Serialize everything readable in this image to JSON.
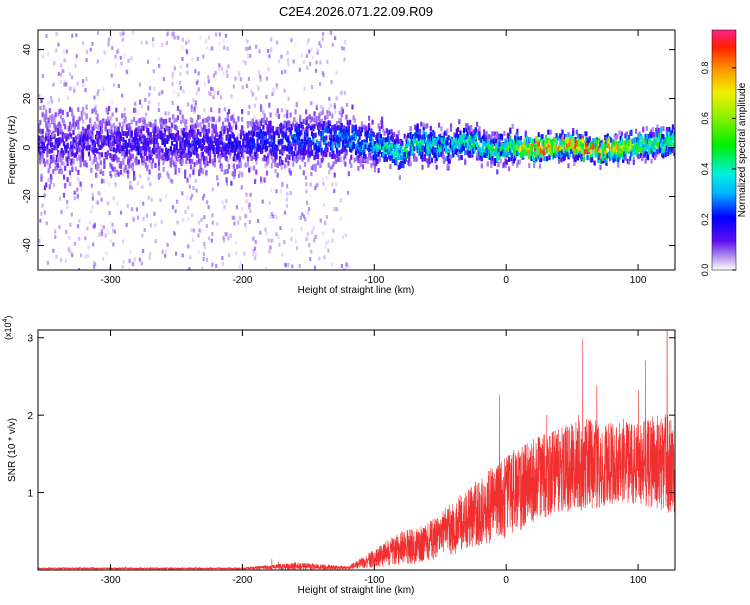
{
  "title": "C2E4.2026.071.22.09.R09",
  "colors": {
    "snr_line": "#f03030",
    "axis": "#000000",
    "background": "#ffffff"
  },
  "chart_data": [
    {
      "type": "heatmap",
      "name": "spectrogram",
      "xlabel": "Height of straight line (km)",
      "ylabel": "Frequency (Hz)",
      "xlim": [
        -355,
        128
      ],
      "ylim": [
        -50,
        48
      ],
      "x_ticks": [
        -300,
        -200,
        -100,
        0,
        100
      ],
      "y_ticks": [
        -40,
        -20,
        0,
        20,
        40
      ],
      "x_tick_labels": [
        "-300",
        "-200",
        "-100",
        "0",
        "100"
      ],
      "y_tick_labels": [
        "-40",
        "-20",
        "0",
        "20",
        "40"
      ],
      "colorbar": {
        "label": "Normalized spectral amplitude",
        "range": [
          0.0,
          0.95
        ],
        "ticks": [
          0.0,
          0.2,
          0.4,
          0.6,
          0.8
        ],
        "tick_labels": [
          "0.0",
          "0.2",
          "0.4",
          "0.6",
          "0.8"
        ]
      },
      "ridge": {
        "description": "energy band centred near 0 Hz; widest scatter before -120 km, narrowing and strengthening toward +120 km",
        "center_hz": [
          [
            -355,
            1
          ],
          [
            -300,
            2
          ],
          [
            -250,
            1
          ],
          [
            -200,
            2
          ],
          [
            -150,
            3
          ],
          [
            -120,
            4
          ],
          [
            -100,
            1
          ],
          [
            -80,
            -2
          ],
          [
            -70,
            2
          ],
          [
            -50,
            0
          ],
          [
            -30,
            2
          ],
          [
            -10,
            -1
          ],
          [
            20,
            0
          ],
          [
            50,
            1
          ],
          [
            70,
            -1
          ],
          [
            100,
            1
          ],
          [
            128,
            2
          ]
        ],
        "halfwidth_hz": [
          [
            -355,
            10
          ],
          [
            -200,
            9
          ],
          [
            -130,
            9
          ],
          [
            -110,
            7
          ],
          [
            -80,
            6
          ],
          [
            0,
            5
          ],
          [
            60,
            4
          ],
          [
            128,
            5
          ]
        ],
        "peak_amplitude": [
          [
            -355,
            0.15
          ],
          [
            -200,
            0.2
          ],
          [
            -120,
            0.3
          ],
          [
            -80,
            0.45
          ],
          [
            -50,
            0.4
          ],
          [
            0,
            0.5
          ],
          [
            20,
            0.85
          ],
          [
            50,
            0.8
          ],
          [
            70,
            0.85
          ],
          [
            100,
            0.6
          ],
          [
            128,
            0.5
          ]
        ]
      },
      "scatter_region_km": [
        -355,
        -120
      ]
    },
    {
      "type": "line",
      "name": "snr",
      "xlabel": "Height of straight line (km)",
      "ylabel": "SNR (10 * v/v)",
      "y_multiplier_label": "(x10",
      "y_multiplier_exponent": "4",
      "y_multiplier_close": ")",
      "xlim": [
        -355,
        128
      ],
      "ylim": [
        0,
        3.1
      ],
      "x_ticks": [
        -300,
        -200,
        -100,
        0,
        100
      ],
      "y_ticks": [
        1,
        2,
        3
      ],
      "x_tick_labels": [
        "-300",
        "-200",
        "-100",
        "0",
        "100"
      ],
      "y_tick_labels": [
        "1",
        "2",
        "3"
      ],
      "envelope_x": [
        -355,
        -200,
        -160,
        -120,
        -100,
        -80,
        -60,
        -40,
        -20,
        0,
        20,
        40,
        60,
        80,
        100,
        120,
        128
      ],
      "envelope_mean": [
        0.02,
        0.02,
        0.05,
        0.03,
        0.15,
        0.28,
        0.35,
        0.55,
        0.75,
        0.95,
        1.15,
        1.3,
        1.35,
        1.4,
        1.4,
        1.4,
        1.3
      ],
      "envelope_noise": [
        0.01,
        0.01,
        0.05,
        0.02,
        0.12,
        0.22,
        0.25,
        0.35,
        0.45,
        0.55,
        0.55,
        0.55,
        0.6,
        0.55,
        0.55,
        0.65,
        0.6
      ],
      "peak_max": 3.1,
      "peak_max_at_km": 122
    }
  ]
}
